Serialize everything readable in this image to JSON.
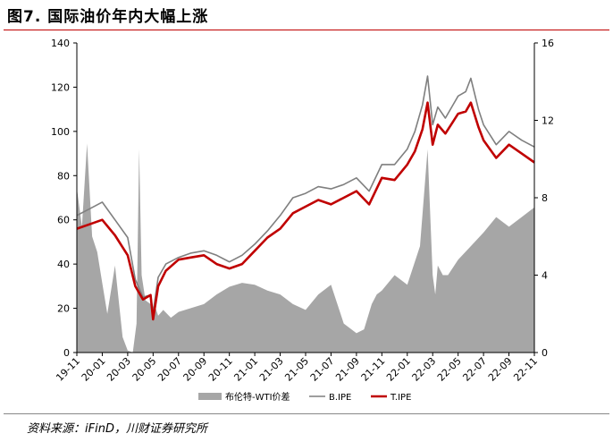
{
  "figure": {
    "title": "图7.   国际油价年内大幅上涨",
    "source": "资料来源：iFinD，川财证券研究所"
  },
  "chart_data": {
    "type": "line",
    "left_axis": {
      "ylim": [
        0,
        140
      ],
      "ticks": [
        "0",
        "20",
        "40",
        "60",
        "80",
        "100",
        "120",
        "140"
      ]
    },
    "right_axis": {
      "ylim": [
        0,
        16
      ],
      "ticks": [
        "0",
        "4",
        "8",
        "12",
        "16"
      ]
    },
    "x_ticks": [
      "19-11",
      "20-01",
      "20-03",
      "20-05",
      "20-07",
      "20-09",
      "20-11",
      "21-01",
      "21-03",
      "21-05",
      "21-07",
      "21-09",
      "21-11",
      "22-01",
      "22-03",
      "22-05",
      "22-07",
      "22-09",
      "22-11"
    ],
    "colors": {
      "spread": "#a6a6a6",
      "brent": "#7f7f7f",
      "tipe": "#c00000"
    },
    "series": [
      {
        "name": "布伦特-WTI价差",
        "axis": "right",
        "style": "area",
        "x": [
          0,
          0.2,
          0.4,
          0.6,
          0.8,
          1.0,
          1.2,
          1.5,
          1.8,
          2.0,
          2.2,
          2.35,
          2.45,
          2.55,
          2.7,
          2.9,
          3.0,
          3.1,
          3.2,
          3.4,
          3.7,
          4,
          4.5,
          5,
          5.5,
          6,
          6.5,
          7,
          7.5,
          8,
          8.5,
          9,
          9.5,
          10,
          10.5,
          11,
          11.3,
          11.6,
          11.8,
          12,
          12.5,
          13,
          13.5,
          13.8,
          14,
          14.1,
          14.2,
          14.4,
          14.6,
          15,
          15.5,
          16,
          16.5,
          17,
          17.5,
          18
        ],
        "y": [
          8.5,
          6.5,
          10.8,
          6.0,
          5.2,
          3.6,
          2.0,
          4.5,
          0.8,
          0.1,
          0.0,
          1.5,
          10.5,
          4.0,
          2.7,
          2.5,
          2.0,
          2.3,
          1.9,
          2.2,
          1.8,
          2.1,
          2.3,
          2.5,
          3.0,
          3.4,
          3.6,
          3.5,
          3.2,
          3.0,
          2.5,
          2.2,
          3.0,
          3.5,
          1.5,
          1.0,
          1.2,
          2.5,
          3.0,
          3.2,
          4.0,
          3.5,
          5.5,
          10.5,
          4.0,
          3.0,
          4.5,
          4.0,
          4.0,
          4.8,
          5.5,
          6.2,
          7.0,
          6.5,
          7.0,
          7.5
        ]
      },
      {
        "name": "B.IPE",
        "axis": "left",
        "style": "line",
        "x": [
          0,
          0.5,
          1,
          1.5,
          2,
          2.3,
          2.6,
          2.9,
          3.0,
          3.2,
          3.5,
          4,
          4.5,
          5,
          5.5,
          6,
          6.5,
          7,
          7.5,
          8,
          8.5,
          9,
          9.5,
          10,
          10.5,
          11,
          11.5,
          12,
          12.5,
          13,
          13.3,
          13.6,
          13.8,
          14,
          14.2,
          14.5,
          15,
          15.3,
          15.5,
          15.8,
          16,
          16.5,
          17,
          17.5,
          18
        ],
        "y": [
          62,
          65,
          68,
          60,
          52,
          33,
          25,
          26,
          18,
          34,
          40,
          43,
          45,
          46,
          44,
          41,
          44,
          49,
          55,
          62,
          70,
          72,
          75,
          74,
          76,
          79,
          73,
          85,
          85,
          92,
          100,
          112,
          125,
          103,
          111,
          106,
          116,
          118,
          124,
          110,
          103,
          94,
          100,
          96,
          93
        ]
      },
      {
        "name": "T.IPE",
        "axis": "left",
        "style": "line",
        "x": [
          0,
          0.5,
          1,
          1.5,
          2,
          2.3,
          2.6,
          2.9,
          3.0,
          3.2,
          3.5,
          4,
          4.5,
          5,
          5.5,
          6,
          6.5,
          7,
          7.5,
          8,
          8.5,
          9,
          9.5,
          10,
          10.5,
          11,
          11.5,
          12,
          12.5,
          13,
          13.3,
          13.6,
          13.8,
          14,
          14.2,
          14.5,
          15,
          15.3,
          15.5,
          15.8,
          16,
          16.5,
          17,
          17.5,
          18
        ],
        "y": [
          56,
          58,
          60,
          53,
          44,
          30,
          24,
          26,
          15,
          30,
          37,
          42,
          43,
          44,
          40,
          38,
          40,
          46,
          52,
          56,
          63,
          66,
          69,
          67,
          70,
          73,
          67,
          79,
          78,
          85,
          91,
          101,
          113,
          94,
          103,
          99,
          108,
          109,
          113,
          102,
          96,
          88,
          94,
          90,
          86
        ]
      }
    ],
    "legend": [
      "布伦特-WTI价差",
      "B.IPE",
      "T.IPE"
    ],
    "legend_position": "bottom",
    "grid": false
  }
}
